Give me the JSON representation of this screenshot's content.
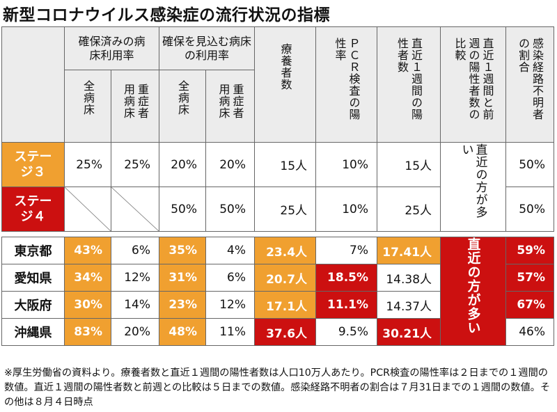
{
  "title": "新型コロナウイルス感染症の流行状況の指標",
  "headers": {
    "group1": "確保済みの病床利用率",
    "group2": "確保を見込む病床の利用率",
    "sub_all": "全病床",
    "sub_severe": "重症者用病床",
    "ryoyo": "療養者数",
    "pcr": "ＰＣＲ検査の陽性率",
    "recent": "直近１週間の陽性者数",
    "compare": "直近１週間と前週の陽性者数の比較",
    "unknown": "感染経路不明者の割合"
  },
  "stages": [
    {
      "label": "ステージ３",
      "cells": [
        "25%",
        "25%",
        "20%",
        "20%",
        "15人",
        "10%",
        "15人"
      ],
      "unknown": "50%"
    },
    {
      "label": "ステージ４",
      "cells": [
        "",
        "",
        "50%",
        "50%",
        "25人",
        "10%",
        "25人"
      ],
      "unknown": "50%"
    }
  ],
  "stage_compare": "直近の方が多い",
  "prefectures": [
    {
      "name": "東京都",
      "cells": [
        "43%",
        "6%",
        "35%",
        "4%",
        "23.4人",
        "7%",
        "17.41人"
      ],
      "unknown": "59%"
    },
    {
      "name": "愛知県",
      "cells": [
        "34%",
        "12%",
        "31%",
        "6%",
        "20.7人",
        "18.5%",
        "14.38人"
      ],
      "unknown": "57%"
    },
    {
      "name": "大阪府",
      "cells": [
        "30%",
        "14%",
        "23%",
        "12%",
        "17.1人",
        "11.1%",
        "14.37人"
      ],
      "unknown": "67%"
    },
    {
      "name": "沖縄県",
      "cells": [
        "83%",
        "20%",
        "48%",
        "11%",
        "37.6人",
        "9.5%",
        "30.21人"
      ],
      "unknown": "46%"
    }
  ],
  "pref_compare": "直近の方が多い",
  "colors": {
    "orange": "#f0a030",
    "red": "#cc1010"
  },
  "note": "※厚生労働省の資料より。療養者数と直近１週間の陽性者数は人口10万人あたり。PCR検査の陽性率は２日までの１週間の数値。直近１週間の陽性者数と前週との比較は５日までの数値。感染経路不明者の割合は７月31日までの１週間の数値。その他は８月４日時点"
}
